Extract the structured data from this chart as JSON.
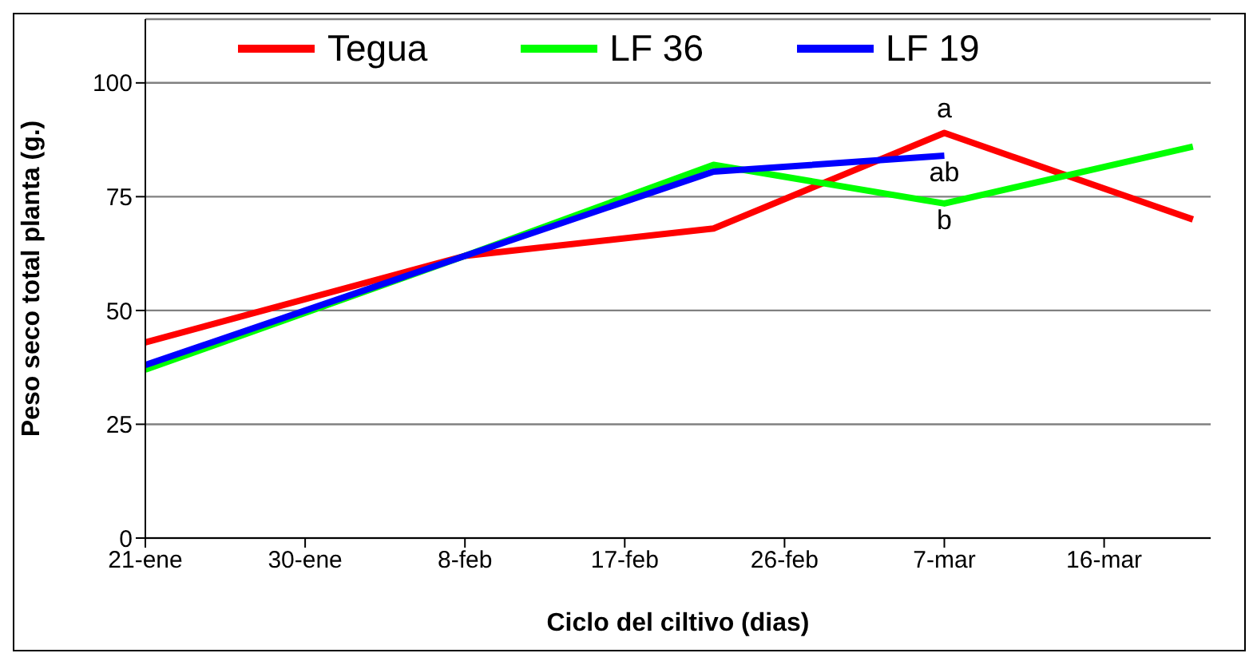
{
  "chart_data": {
    "type": "line",
    "xlabel": "Ciclo del ciltivo (dias)",
    "ylabel": "Peso seco total planta (g.)",
    "x": [
      "--01-21",
      "--02-08",
      "--02-22",
      "--03-07",
      "--03-21"
    ],
    "series": [
      {
        "name": "Tegua",
        "color": "#ff0000",
        "values": [
          43,
          62,
          68,
          89,
          70
        ]
      },
      {
        "name": "LF 36",
        "color": "#00ff00",
        "values": [
          37,
          62,
          82,
          73.5,
          86
        ]
      },
      {
        "name": "LF 19",
        "color": "#0000ff",
        "values": [
          38,
          62,
          80.5,
          84,
          null
        ]
      }
    ],
    "xlim": [
      "--01-21",
      "--03-22"
    ],
    "xticks": [
      {
        "value": "--01-21",
        "label": "21-ene"
      },
      {
        "value": "--01-30",
        "label": "30-ene"
      },
      {
        "value": "--02-08",
        "label": "8-feb"
      },
      {
        "value": "--02-17",
        "label": "17-feb"
      },
      {
        "value": "--02-26",
        "label": "26-feb"
      },
      {
        "value": "--03-07",
        "label": "7-mar"
      },
      {
        "value": "--03-16",
        "label": "16-mar"
      }
    ],
    "ylim": [
      0,
      114
    ],
    "yticks": [
      0,
      25,
      50,
      75,
      100
    ],
    "grid": "y",
    "legend": "top",
    "annotations": [
      {
        "text": "a",
        "x": "--03-07",
        "y": 89
      },
      {
        "text": "ab",
        "x": "--03-07",
        "y": 84
      },
      {
        "text": "b",
        "x": "--03-07",
        "y": 73.5
      }
    ]
  }
}
